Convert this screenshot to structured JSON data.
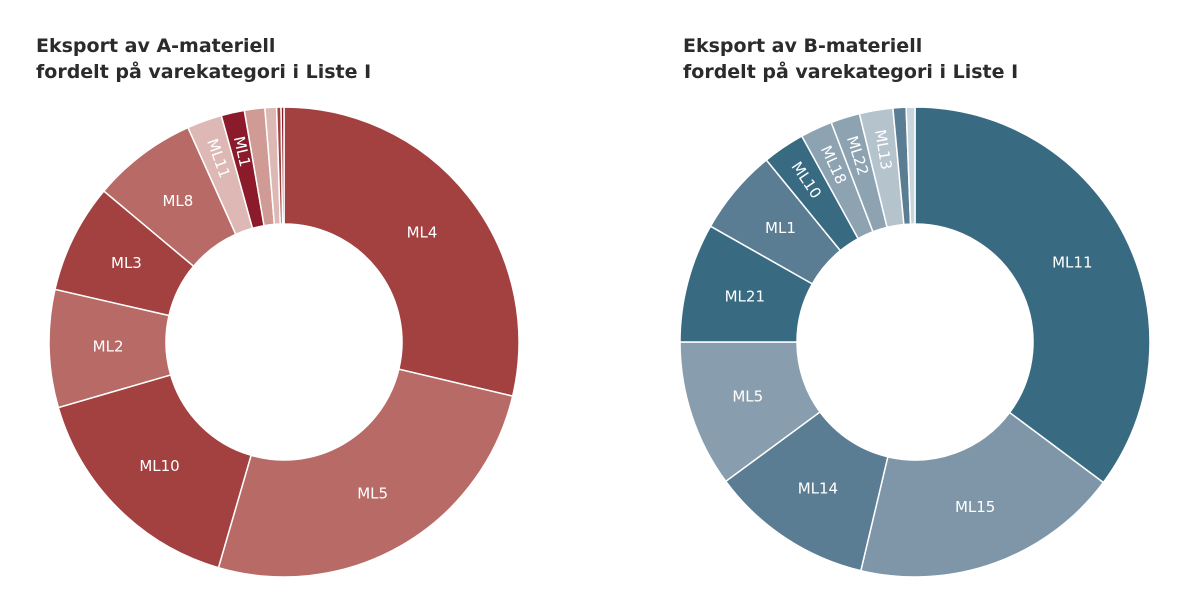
{
  "chart_data": [
    {
      "type": "pie",
      "donut": true,
      "title": [
        "Eksport av A-materiell",
        "fordelt på varekategori i Liste I"
      ],
      "categories": [
        "ML4",
        "ML5",
        "ML10",
        "ML2",
        "ML3",
        "ML8",
        "ML11",
        "ML1",
        null,
        null,
        null,
        null
      ],
      "values": [
        28.7,
        25.8,
        16.0,
        8.1,
        7.5,
        7.2,
        2.4,
        1.6,
        1.4,
        0.8,
        0.3,
        0.2
      ],
      "colors": [
        "#a34040",
        "#b86b66",
        "#a34040",
        "#b86b66",
        "#a34040",
        "#b86b66",
        "#ddb8b4",
        "#8b1a2a",
        "#d09a95",
        "#ddb8b4",
        "#a34040",
        "#8b1a2a"
      ]
    },
    {
      "type": "pie",
      "donut": true,
      "title": [
        "Eksport av B-materiell",
        "fordelt på varekategori i Liste I"
      ],
      "categories": [
        "ML11",
        "ML15",
        "ML14",
        "ML5",
        "ML21",
        "ML1",
        "ML10",
        "ML18",
        "ML22",
        "ML13",
        null,
        null
      ],
      "values": [
        35.2,
        18.5,
        11.2,
        10.1,
        8.2,
        5.9,
        2.9,
        2.2,
        2.0,
        2.3,
        0.9,
        0.6
      ],
      "colors": [
        "#386b82",
        "#7e96a7",
        "#5a7d93",
        "#889eae",
        "#386b82",
        "#5a7d93",
        "#386b82",
        "#8ea3b2",
        "#8ea3b2",
        "#b5c3cd",
        "#5a7d93",
        "#c9d5dd"
      ]
    }
  ]
}
